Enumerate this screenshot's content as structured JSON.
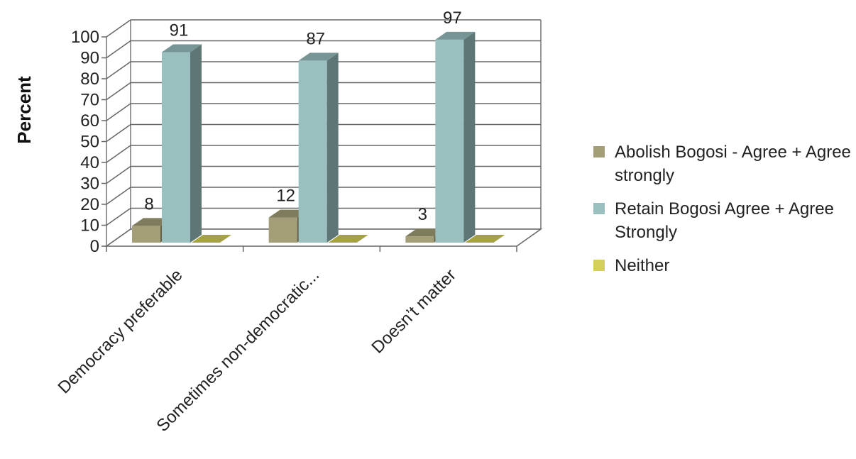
{
  "chart_data": {
    "type": "bar",
    "variant": "3d-clustered",
    "categories": [
      "Democracy preferable",
      "Sometimes non-democratic...",
      "Doesn’t matter"
    ],
    "series": [
      {
        "name": "Abolish Bogosi - Agree + Agree strongly",
        "values": [
          8,
          12,
          3
        ],
        "color": "#a39e77"
      },
      {
        "name": "Retain Bogosi Agree + Agree Strongly",
        "values": [
          91,
          87,
          97
        ],
        "color": "#9abfbf"
      },
      {
        "name": "Neither",
        "values": [
          0,
          0,
          0
        ],
        "color": "#d4cf5a"
      }
    ],
    "data_labels": [
      [
        "8",
        "91",
        ""
      ],
      [
        "12",
        "87",
        ""
      ],
      [
        "3",
        "97",
        ""
      ]
    ],
    "ylabel": "Percent",
    "xlabel": "",
    "title": "",
    "ylim": [
      0,
      100
    ],
    "yticks": [
      "0",
      "10",
      "20",
      "30",
      "40",
      "50",
      "60",
      "70",
      "80",
      "90",
      "100"
    ],
    "grid": true,
    "legend_position": "right"
  }
}
